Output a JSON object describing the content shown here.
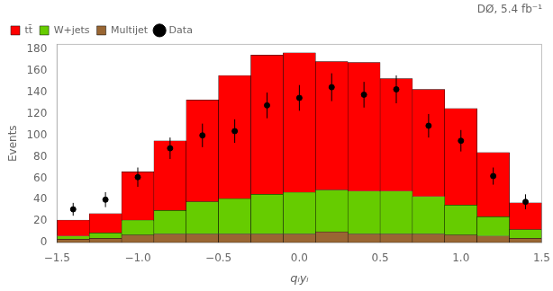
{
  "chart_data": {
    "type": "bar",
    "stacked": true,
    "title": "DØ, 5.4 fb⁻¹",
    "x_label": "qₗyₗ",
    "y_label": "Events",
    "bins": [
      -1.5,
      -1.3,
      -1.1,
      -0.9,
      -0.7,
      -0.5,
      -0.3,
      -0.1,
      0.1,
      0.3,
      0.5,
      0.7,
      0.9,
      1.1,
      1.3,
      1.5
    ],
    "series": [
      {
        "name": "tt̄",
        "color": "#ff0000",
        "values": [
          15,
          18,
          45,
          65,
          95,
          115,
          130,
          130,
          120,
          120,
          105,
          100,
          90,
          60,
          25
        ]
      },
      {
        "name": "W+jets",
        "color": "#66cc00",
        "values": [
          3,
          5,
          14,
          22,
          30,
          33,
          37,
          39,
          39,
          40,
          40,
          35,
          28,
          18,
          8
        ]
      },
      {
        "name": "Multijet",
        "color": "#996633",
        "values": [
          3,
          4,
          7,
          8,
          8,
          8,
          8,
          8,
          10,
          8,
          8,
          8,
          7,
          6,
          4
        ]
      },
      {
        "name": "Data",
        "type": "scatter",
        "marker": "circle",
        "color": "#000000",
        "x": [
          -1.4,
          -1.2,
          -1.0,
          -0.8,
          -0.6,
          -0.4,
          -0.2,
          0.0,
          0.2,
          0.4,
          0.6,
          0.8,
          1.0,
          1.2,
          1.4
        ],
        "values": [
          31,
          40,
          61,
          88,
          100,
          104,
          128,
          135,
          145,
          138,
          143,
          109,
          95,
          62,
          38
        ],
        "yerr": [
          6,
          7,
          9,
          10,
          11,
          11,
          12,
          12,
          13,
          12,
          13,
          11,
          10,
          8,
          7
        ]
      }
    ],
    "xlim": [
      -1.5,
      1.5
    ],
    "xticks": [
      {
        "value": -1.5,
        "label": "−1.5"
      },
      {
        "value": -1.0,
        "label": "−1.0"
      },
      {
        "value": -0.5,
        "label": "−0.5"
      },
      {
        "value": 0.0,
        "label": "0.0"
      },
      0.5,
      {
        "value": 1.0,
        "label": "1.0"
      },
      1.5
    ],
    "ylim": [
      0,
      185
    ],
    "yticks": [
      0,
      20,
      40,
      60,
      80,
      100,
      120,
      140,
      160,
      180
    ],
    "grid": false,
    "legend": "upper left"
  }
}
